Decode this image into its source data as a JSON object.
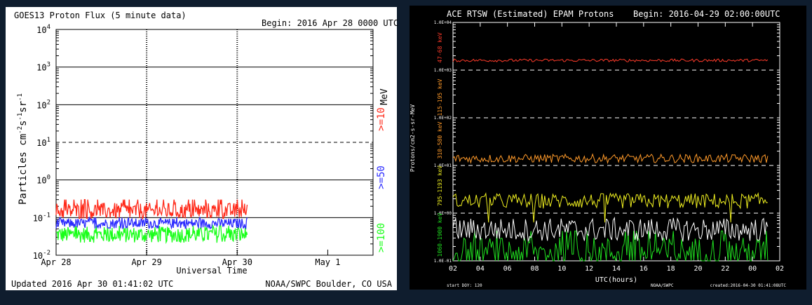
{
  "goes_panel": {
    "title": "GOES13 Proton Flux (5 minute data)",
    "begin": "Begin: 2016 Apr 28 0000 UTC",
    "footer_left": "Updated 2016 Apr 30 01:41:02 UTC",
    "footer_right": "NOAA/SWPC Boulder, CO USA",
    "xlabel": "Universal Time",
    "ylabel_main": "Particles cm",
    "ylabel_sup1": "-2",
    "ylabel_s": "s",
    "ylabel_sup2": "-1",
    "ylabel_sr": "sr",
    "ylabel_sup3": "-1",
    "unit_label": "MeV",
    "colors": {
      "background": "#ffffff",
      "ge10": "#ff2a1a",
      "ge50": "#2a2aff",
      "ge100": "#19ff19"
    }
  },
  "ace_panel": {
    "title": "ACE RTSW (Estimated) EPAM Protons",
    "begin": "Begin: 2016-04-29 02:00:00UTC",
    "xlabel": "UTC(hours)",
    "ylabel": "Protons/cm2-s-sr-MeV",
    "footer_left": "start DOY:  120",
    "footer_mid": "NOAA/SWPC",
    "footer_right": "created:2016-04-30 01:41:08UTC",
    "colors": {
      "background": "#000000",
      "c47": "#ff3b2a",
      "c115": "#ff9a2a",
      "c310": "#ffa040",
      "c795": "#f0f020",
      "c1060": "#20e020",
      "c795_line": "#f0f020",
      "white_line": "#ffffff"
    }
  },
  "chart_data": [
    {
      "type": "line",
      "title": "GOES13 Proton Flux (5 minute data)",
      "xlabel": "Universal Time",
      "ylabel": "Particles cm-2s-1sr-1",
      "yscale": "log",
      "ylim": [
        0.01,
        10000
      ],
      "x_ticks": [
        "Apr 28",
        "Apr 29",
        "Apr 30",
        "May 1"
      ],
      "y_ticks": [
        {
          "base": "10",
          "exp": "-2"
        },
        {
          "base": "10",
          "exp": "-1"
        },
        {
          "base": "10",
          "exp": "0"
        },
        {
          "base": "10",
          "exp": "1"
        },
        {
          "base": "10",
          "exp": "2"
        },
        {
          "base": "10",
          "exp": "3"
        },
        {
          "base": "10",
          "exp": "4"
        }
      ],
      "grid": "horizontal at each decade; dashed at 10",
      "series": [
        {
          "name": ">=10",
          "color": "#ff2a1a",
          "typical": 0.15,
          "range": [
            0.1,
            0.3
          ]
        },
        {
          "name": ">=50",
          "color": "#2a2aff",
          "typical": 0.07,
          "range": [
            0.05,
            0.1
          ]
        },
        {
          "name": ">=100",
          "color": "#19ff19",
          "typical": 0.035,
          "range": [
            0.02,
            0.06
          ]
        }
      ],
      "x_range_days": [
        0,
        3
      ]
    },
    {
      "type": "line",
      "title": "ACE RTSW (Estimated) EPAM Protons",
      "xlabel": "UTC(hours)",
      "ylabel": "Protons/cm2-s-sr-MeV",
      "yscale": "log",
      "ylim": [
        0.1,
        10000
      ],
      "x_ticks": [
        "02",
        "04",
        "06",
        "08",
        "10",
        "12",
        "14",
        "16",
        "18",
        "20",
        "22",
        "00",
        "02"
      ],
      "y_ticks": [
        "1.0E-01",
        "1.0E+00",
        "1.0E+01",
        "1.0E+02",
        "1.0E+03",
        "1.0E+04"
      ],
      "grid": "dashed at 1.0E+00, 1.0E+01, 1.0E+02, 1.0E+03",
      "series": [
        {
          "name": "47-68 keV",
          "color": "#ff3b2a",
          "typical": 1600
        },
        {
          "name": "115-195 keV",
          "color": "#ff9a2a"
        },
        {
          "name": "310-580 keV",
          "color": "#ff9a2a",
          "typical": 14
        },
        {
          "name": "795-1193 keV",
          "color": "#f0f020",
          "typical": 1.8
        },
        {
          "name": "1060-1900 keV",
          "color": "#20e020",
          "typical": 0.15
        },
        {
          "name": "",
          "color": "#ffffff",
          "typical": 0.45
        }
      ]
    }
  ]
}
